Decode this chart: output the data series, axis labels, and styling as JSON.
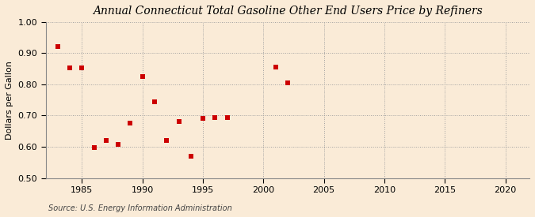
{
  "title": "Annual Connecticut Total Gasoline Other End Users Price by Refiners",
  "ylabel": "Dollars per Gallon",
  "source": "Source: U.S. Energy Information Administration",
  "background_color": "#faebd7",
  "point_color": "#cc0000",
  "xlim": [
    1982,
    2022
  ],
  "ylim": [
    0.5,
    1.0
  ],
  "xticks": [
    1985,
    1990,
    1995,
    2000,
    2005,
    2010,
    2015,
    2020
  ],
  "yticks": [
    0.5,
    0.6,
    0.7,
    0.8,
    0.9,
    1.0
  ],
  "data_x": [
    1983,
    1984,
    1985,
    1986,
    1987,
    1988,
    1989,
    1990,
    1991,
    1992,
    1993,
    1994,
    1995,
    1996,
    1997,
    2001,
    2002
  ],
  "data_y": [
    0.921,
    0.853,
    0.853,
    0.598,
    0.621,
    0.607,
    0.676,
    0.825,
    0.743,
    0.62,
    0.682,
    0.57,
    0.69,
    0.694,
    0.693,
    0.855,
    0.805
  ],
  "title_fontsize": 10,
  "ylabel_fontsize": 8,
  "tick_fontsize": 8,
  "source_fontsize": 7,
  "marker_size": 14
}
